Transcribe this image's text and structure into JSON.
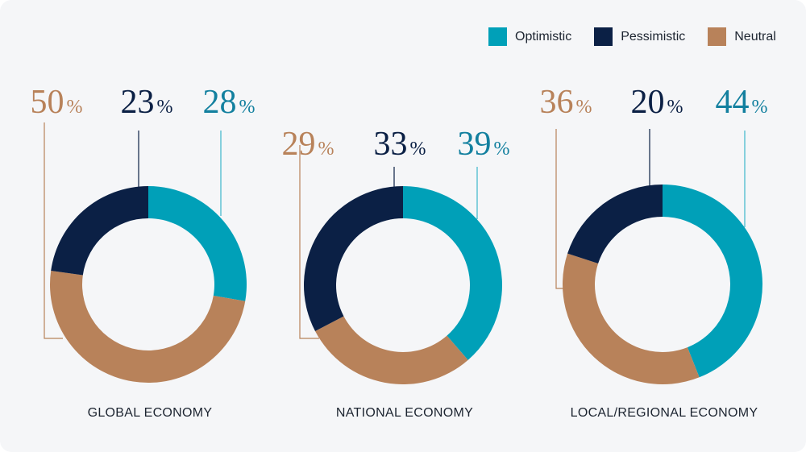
{
  "legend": [
    {
      "label": "Optimistic",
      "color": "#00a0b8"
    },
    {
      "label": "Pessimistic",
      "color": "#0b2045"
    },
    {
      "label": "Neutral",
      "color": "#b8825a"
    }
  ],
  "chart_data": [
    {
      "type": "donut",
      "title": "GLOBAL ECONOMY",
      "series": [
        {
          "name": "Optimistic",
          "value": 28
        },
        {
          "name": "Pessimistic",
          "value": 23
        },
        {
          "name": "Neutral",
          "value": 50
        }
      ]
    },
    {
      "type": "donut",
      "title": "NATIONAL ECONOMY",
      "series": [
        {
          "name": "Optimistic",
          "value": 39
        },
        {
          "name": "Pessimistic",
          "value": 33
        },
        {
          "name": "Neutral",
          "value": 29
        }
      ]
    },
    {
      "type": "donut",
      "title": "LOCAL/REGIONAL ECONOMY",
      "series": [
        {
          "name": "Optimistic",
          "value": 44
        },
        {
          "name": "Pessimistic",
          "value": 20
        },
        {
          "name": "Neutral",
          "value": 36
        }
      ]
    }
  ],
  "label_colors": {
    "Optimistic": "#13809f",
    "Pessimistic": "#0b2045",
    "Neutral": "#b8825a"
  },
  "percent_sign": "%"
}
